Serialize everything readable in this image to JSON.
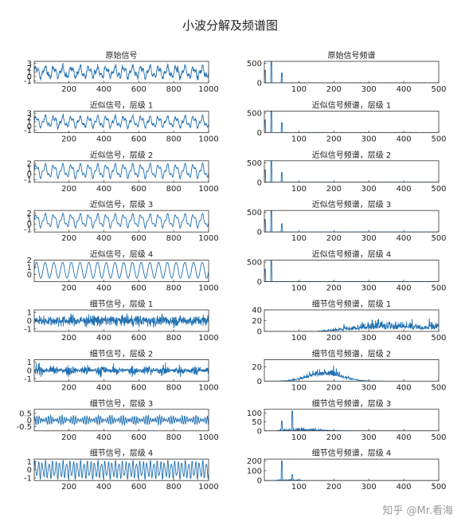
{
  "figure": {
    "title": "小波分解及频谱图",
    "watermark": "知乎 @Mr.看海"
  },
  "colors": {
    "line": "#1f6fb2",
    "axis": "#333333",
    "background": "#ffffff"
  },
  "chart_data": [
    {
      "type": "line",
      "title": "原始信号",
      "xlim": [
        1,
        1000
      ],
      "xticks": [
        200,
        400,
        600,
        800,
        1000
      ],
      "ylim": [
        -1.5,
        3.5
      ],
      "yticks": [
        -1,
        0,
        1,
        2,
        3
      ],
      "description": "noisy periodic signal, 20 cycles, range about -1 to 3"
    },
    {
      "type": "line",
      "title": "原始信号频谱",
      "xlim": [
        1,
        500
      ],
      "xticks": [
        100,
        200,
        300,
        400,
        500
      ],
      "ylim": [
        0,
        550
      ],
      "yticks": [
        0,
        500
      ],
      "peaks": [
        {
          "x": 3,
          "y": 320
        },
        {
          "x": 21,
          "y": 540
        },
        {
          "x": 51,
          "y": 250
        }
      ]
    },
    {
      "type": "line",
      "title": "近似信号，层级 1",
      "xlim": [
        1,
        1000
      ],
      "xticks": [
        200,
        400,
        600,
        800,
        1000
      ],
      "ylim": [
        -1.5,
        3.5
      ],
      "yticks": [
        -1,
        0,
        1,
        2,
        3
      ]
    },
    {
      "type": "line",
      "title": "近似信号频谱，层级 1",
      "xlim": [
        1,
        500
      ],
      "xticks": [
        100,
        200,
        300,
        400,
        500
      ],
      "ylim": [
        0,
        550
      ],
      "yticks": [
        0,
        500
      ],
      "peaks": [
        {
          "x": 3,
          "y": 320
        },
        {
          "x": 21,
          "y": 540
        },
        {
          "x": 51,
          "y": 250
        }
      ]
    },
    {
      "type": "line",
      "title": "近似信号，层级 2",
      "xlim": [
        1,
        1000
      ],
      "xticks": [
        200,
        400,
        600,
        800,
        1000
      ],
      "ylim": [
        -1.5,
        2.5
      ],
      "yticks": [
        -1,
        0,
        1,
        2
      ]
    },
    {
      "type": "line",
      "title": "近似信号频谱，层级 2",
      "xlim": [
        1,
        500
      ],
      "xticks": [
        100,
        200,
        300,
        400,
        500
      ],
      "ylim": [
        0,
        550
      ],
      "yticks": [
        0,
        500
      ],
      "peaks": [
        {
          "x": 3,
          "y": 320
        },
        {
          "x": 21,
          "y": 540
        },
        {
          "x": 51,
          "y": 250
        }
      ]
    },
    {
      "type": "line",
      "title": "近似信号，层级 3",
      "xlim": [
        1,
        1000
      ],
      "xticks": [
        200,
        400,
        600,
        800,
        1000
      ],
      "ylim": [
        -1.5,
        2.5
      ],
      "yticks": [
        -1,
        0,
        1,
        2
      ]
    },
    {
      "type": "line",
      "title": "近似信号频谱，层级 3",
      "xlim": [
        1,
        500
      ],
      "xticks": [
        100,
        200,
        300,
        400,
        500
      ],
      "ylim": [
        0,
        550
      ],
      "yticks": [
        0,
        500
      ],
      "peaks": [
        {
          "x": 3,
          "y": 320
        },
        {
          "x": 21,
          "y": 540
        },
        {
          "x": 51,
          "y": 210
        }
      ]
    },
    {
      "type": "line",
      "title": "近似信号，层级 4",
      "xlim": [
        1,
        1000
      ],
      "xticks": [
        200,
        400,
        600,
        800,
        1000
      ],
      "ylim": [
        -1,
        2
      ],
      "yticks": [
        0,
        1,
        2
      ]
    },
    {
      "type": "line",
      "title": "近似信号频谱，层级 4",
      "xlim": [
        1,
        500
      ],
      "xticks": [
        100,
        200,
        300,
        400,
        500
      ],
      "ylim": [
        0,
        550
      ],
      "yticks": [
        0,
        500
      ],
      "peaks": [
        {
          "x": 3,
          "y": 320
        },
        {
          "x": 21,
          "y": 540
        }
      ]
    },
    {
      "type": "line",
      "title": "细节信号，层级 1",
      "xlim": [
        1,
        1000
      ],
      "xticks": [
        200,
        400,
        600,
        800,
        1000
      ],
      "ylim": [
        -1.3,
        1.3
      ],
      "yticks": [
        -1,
        0,
        1
      ]
    },
    {
      "type": "line",
      "title": "细节信号频谱，层级 1",
      "xlim": [
        1,
        500
      ],
      "xticks": [
        100,
        200,
        300,
        400,
        500
      ],
      "ylim": [
        0,
        40
      ],
      "yticks": [
        0,
        20,
        40
      ],
      "description": "broadband noise rising from about 150 to 500, peak near 35"
    },
    {
      "type": "line",
      "title": "细节信号，层级 2",
      "xlim": [
        1,
        1000
      ],
      "xticks": [
        200,
        400,
        600,
        800,
        1000
      ],
      "ylim": [
        -1.3,
        1.3
      ],
      "yticks": [
        -1,
        0,
        1
      ]
    },
    {
      "type": "line",
      "title": "细节信号频谱，层级 2",
      "xlim": [
        1,
        500
      ],
      "xticks": [
        100,
        200,
        300,
        400,
        500
      ],
      "ylim": [
        0,
        30
      ],
      "yticks": [
        0,
        20
      ],
      "description": "bell-shaped band centered near 175, span about 60 to 300"
    },
    {
      "type": "line",
      "title": "细节信号，层级 3",
      "xlim": [
        1,
        1000
      ],
      "xticks": [
        200,
        400,
        600,
        800,
        1000
      ],
      "ylim": [
        -0.8,
        0.8
      ],
      "yticks": [
        -0.5,
        0,
        0.5
      ]
    },
    {
      "type": "line",
      "title": "细节信号频谱，层级 3",
      "xlim": [
        1,
        500
      ],
      "xticks": [
        100,
        200,
        300,
        400,
        500
      ],
      "ylim": [
        0,
        120
      ],
      "yticks": [
        0,
        50,
        100
      ],
      "peaks": [
        {
          "x": 51,
          "y": 55
        },
        {
          "x": 81,
          "y": 110
        }
      ]
    },
    {
      "type": "line",
      "title": "细节信号，层级 4",
      "xlim": [
        1,
        1000
      ],
      "xticks": [
        200,
        400,
        600,
        800,
        1000
      ],
      "ylim": [
        -1.3,
        1.3
      ],
      "yticks": [
        -1,
        0,
        1
      ]
    },
    {
      "type": "line",
      "title": "细节信号频谱，层级 4",
      "xlim": [
        1,
        500
      ],
      "xticks": [
        100,
        200,
        300,
        400,
        500
      ],
      "ylim": [
        0,
        220
      ],
      "yticks": [
        0,
        100,
        200
      ],
      "peaks": [
        {
          "x": 51,
          "y": 200
        },
        {
          "x": 81,
          "y": 60
        }
      ]
    }
  ]
}
